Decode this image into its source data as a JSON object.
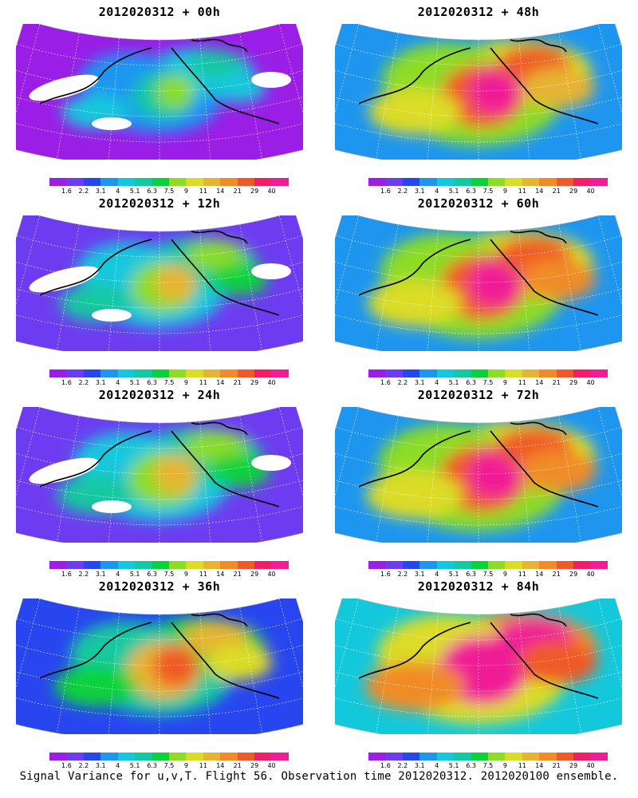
{
  "panels": [
    {
      "title": "2012020312 + 00h",
      "intensity": 0.25,
      "holes": true
    },
    {
      "title": "2012020312 + 48h",
      "intensity": 0.75,
      "holes": false
    },
    {
      "title": "2012020312 + 12h",
      "intensity": 0.35,
      "holes": true
    },
    {
      "title": "2012020312 + 60h",
      "intensity": 0.8,
      "holes": false
    },
    {
      "title": "2012020312 + 24h",
      "intensity": 0.45,
      "holes": true
    },
    {
      "title": "2012020312 + 72h",
      "intensity": 0.85,
      "holes": false
    },
    {
      "title": "2012020312 + 36h",
      "intensity": 0.55,
      "holes": false
    },
    {
      "title": "2012020312 + 84h",
      "intensity": 0.9,
      "holes": false
    }
  ],
  "colorbar": {
    "labels": [
      "1.6",
      "2.2",
      "3.1",
      "4",
      "5.1",
      "6.3",
      "7.5",
      "9",
      "11",
      "14",
      "21",
      "29",
      "40"
    ],
    "colors": [
      "#9a1ee6",
      "#6e3cf0",
      "#2846f0",
      "#1e96f0",
      "#14c8dc",
      "#14c8a0",
      "#0ad23c",
      "#8cdc28",
      "#dcdc28",
      "#e6b432",
      "#f08c28",
      "#f05a28",
      "#f01e64",
      "#f01e96"
    ]
  },
  "footer": "Signal Variance for u,v,T. Flight 56. Observation time 2012020312. 2012020100 ensemble."
}
